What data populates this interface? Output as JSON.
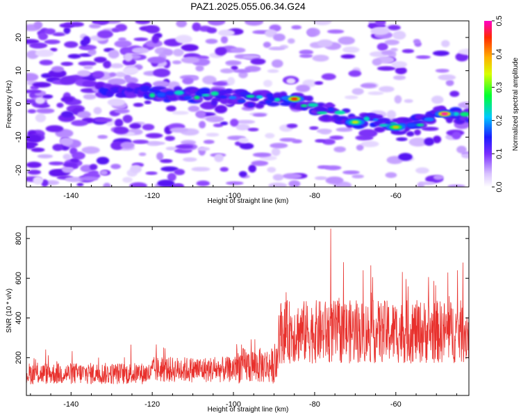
{
  "title": "PAZ1.2025.055.06.34.G24",
  "chart_data": [
    {
      "type": "heatmap",
      "title": "PAZ1.2025.055.06.34.G24",
      "xlabel": "Height of straight line (km)",
      "ylabel": "Frequency (Hz)",
      "xlim": [
        -151,
        -42
      ],
      "ylim": [
        -25,
        25
      ],
      "xticks": [
        "-140",
        "-120",
        "-100",
        "-80",
        "-60"
      ],
      "yticks": [
        "20",
        "10",
        "0",
        "-10",
        "-20"
      ],
      "colorbar": {
        "label": "Normalized spectral amplitude",
        "range": [
          0.0,
          0.5
        ],
        "ticks": [
          "0.0",
          "0.1",
          "0.2",
          "0.3",
          "0.4",
          "0.5"
        ]
      },
      "ridge": [
        {
          "x": -130,
          "y": 4
        },
        {
          "x": -115,
          "y": 3
        },
        {
          "x": -100,
          "y": 2
        },
        {
          "x": -90,
          "y": 1
        },
        {
          "x": -85,
          "y": 1
        },
        {
          "x": -80,
          "y": -1
        },
        {
          "x": -75,
          "y": -3
        },
        {
          "x": -70,
          "y": -5
        },
        {
          "x": -62,
          "y": -6
        },
        {
          "x": -55,
          "y": -6
        },
        {
          "x": -50,
          "y": -3
        },
        {
          "x": -45,
          "y": -4
        }
      ],
      "peaks": [
        {
          "x": -85,
          "y": 1.5,
          "amplitude": 0.45
        },
        {
          "x": -70,
          "y": -5.5,
          "amplitude": 0.35
        },
        {
          "x": -60,
          "y": -7,
          "amplitude": 0.38
        },
        {
          "x": -48,
          "y": -3,
          "amplitude": 0.5
        }
      ]
    },
    {
      "type": "line",
      "xlabel": "Height of straight line (km)",
      "ylabel": "SNR (10 * v/v)",
      "xlim": [
        -151,
        -42
      ],
      "ylim": [
        10,
        860
      ],
      "xticks": [
        "-140",
        "-120",
        "-100",
        "-80",
        "-60"
      ],
      "yticks": [
        "800",
        "600",
        "400",
        "200"
      ],
      "series": [
        {
          "name": "SNR",
          "color": "#e8302c",
          "segments": [
            {
              "x_start": -151,
              "x_end": -120,
              "mean": 120,
              "noise": 55
            },
            {
              "x_start": -120,
              "x_end": -100,
              "mean": 140,
              "noise": 65
            },
            {
              "x_start": -100,
              "x_end": -89,
              "mean": 160,
              "noise": 90
            },
            {
              "x_start": -89,
              "x_end": -42,
              "mean": 330,
              "noise": 160
            }
          ],
          "max": {
            "x": -76,
            "y": 850
          }
        }
      ]
    }
  ]
}
